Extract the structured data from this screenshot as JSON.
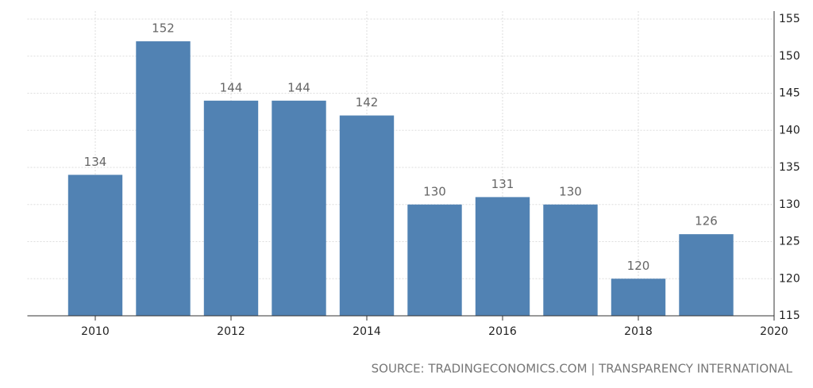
{
  "chart_data": {
    "type": "bar",
    "x": [
      2010,
      2011,
      2012,
      2013,
      2014,
      2015,
      2016,
      2017,
      2018,
      2019
    ],
    "values": [
      134,
      152,
      144,
      144,
      142,
      130,
      131,
      130,
      120,
      126
    ],
    "color": "#5182b3",
    "xlim": [
      2009,
      2020
    ],
    "xticks": [
      2010,
      2012,
      2014,
      2016,
      2018,
      2020
    ],
    "ylim": [
      115,
      155
    ],
    "yticks": [
      115,
      120,
      125,
      130,
      135,
      140,
      145,
      150,
      155
    ],
    "grid": true,
    "source": "SOURCE: TRADINGECONOMICS.COM | TRANSPARENCY INTERNATIONAL"
  }
}
